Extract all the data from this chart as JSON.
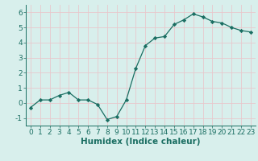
{
  "x": [
    0,
    1,
    2,
    3,
    4,
    5,
    6,
    7,
    8,
    9,
    10,
    11,
    12,
    13,
    14,
    15,
    16,
    17,
    18,
    19,
    20,
    21,
    22,
    23
  ],
  "y": [
    -0.3,
    0.2,
    0.2,
    0.5,
    0.7,
    0.2,
    0.2,
    -0.1,
    -1.1,
    -0.9,
    0.2,
    2.3,
    3.8,
    4.3,
    4.4,
    5.2,
    5.5,
    5.9,
    5.7,
    5.4,
    5.3,
    5.0,
    4.8,
    4.7
  ],
  "xlim": [
    -0.5,
    23.5
  ],
  "ylim": [
    -1.5,
    6.5
  ],
  "yticks": [
    -1,
    0,
    1,
    2,
    3,
    4,
    5,
    6
  ],
  "xticks": [
    0,
    1,
    2,
    3,
    4,
    5,
    6,
    7,
    8,
    9,
    10,
    11,
    12,
    13,
    14,
    15,
    16,
    17,
    18,
    19,
    20,
    21,
    22,
    23
  ],
  "xlabel": "Humidex (Indice chaleur)",
  "line_color": "#1a6e62",
  "marker": "D",
  "marker_size": 2.2,
  "bg_color": "#d8efec",
  "grid_color": "#e8c8cc",
  "tick_color": "#1a6e62",
  "label_color": "#1a6e62",
  "xlabel_fontsize": 7.5,
  "tick_fontsize": 6.5,
  "linewidth": 0.9
}
